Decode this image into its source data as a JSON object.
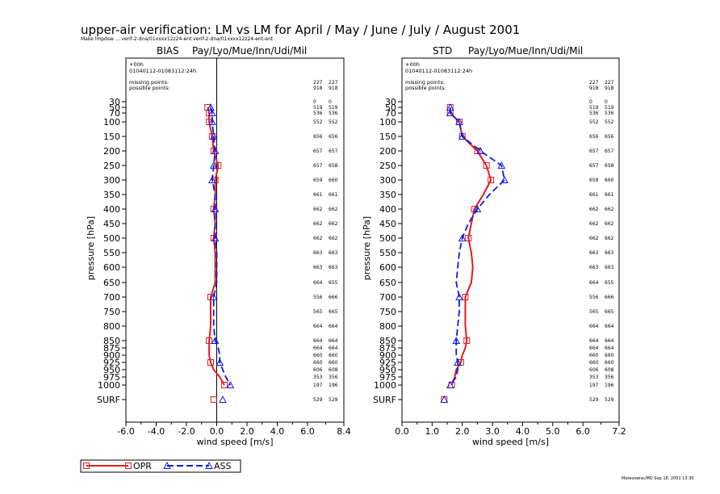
{
  "header": {
    "title": "upper-air verification: LM vs LM for April / May / June / July / August 2001",
    "subtitle": "Make lmpdsw ... verif-2-dna/01xxxx12z24-ent verif-2-dna/01xxxx12z24-ent-ent",
    "stamp": "Meteoswiss/MO Sep 18, 2001 13:30"
  },
  "legend": {
    "position": "bottom-left",
    "entries": [
      {
        "label": "OPR",
        "color": "#e41a1c",
        "style": "solid",
        "marker": "square"
      },
      {
        "label": "ASS",
        "color": "#0a1ae8",
        "style": "dashed",
        "marker": "triangle"
      }
    ]
  },
  "chart_data": [
    {
      "type": "line",
      "title": "BIAS",
      "stations": "Pay/Lyo/Mue/Inn/Udi/Mil",
      "xlabel": "wind speed  [m/s]",
      "ylabel": "pressure [hPa]",
      "xlim": [
        -6.0,
        8.4
      ],
      "xticks": [
        "-6.0",
        "-4.0",
        "-2.0",
        "0.0",
        "2.0",
        "4.0",
        "6.0",
        "8.4"
      ],
      "zero_line": true,
      "info": [
        "+00h",
        "01040112-01083112:24h",
        "missing points:",
        "possible points:"
      ],
      "count_header": [
        [
          "227",
          "227"
        ],
        [
          "918",
          "918"
        ]
      ],
      "levels": [
        "30",
        "50",
        "70",
        "100",
        "150",
        "200",
        "250",
        "300",
        "350",
        "400",
        "450",
        "500",
        "550",
        "600",
        "650",
        "700",
        "750",
        "800",
        "850",
        "875",
        "900",
        "925",
        "950",
        "975",
        "1000",
        "SURF"
      ],
      "counts": [
        [
          "0",
          "0"
        ],
        [
          "519",
          "519"
        ],
        [
          "536",
          "536"
        ],
        [
          "552",
          "552"
        ],
        [
          "656",
          "656"
        ],
        [
          "657",
          "657"
        ],
        [
          "657",
          "658"
        ],
        [
          "659",
          "660"
        ],
        [
          "661",
          "661"
        ],
        [
          "662",
          "662"
        ],
        [
          "662",
          "662"
        ],
        [
          "662",
          "662"
        ],
        [
          "663",
          "663"
        ],
        [
          "663",
          "663"
        ],
        [
          "664",
          "655"
        ],
        [
          "556",
          "666"
        ],
        [
          "565",
          "665"
        ],
        [
          "664",
          "664"
        ],
        [
          "664",
          "664"
        ],
        [
          "664",
          "664"
        ],
        [
          "660",
          "660"
        ],
        [
          "660",
          "660"
        ],
        [
          "606",
          "608"
        ],
        [
          "353",
          "356"
        ],
        [
          "197",
          "196"
        ],
        [
          "529",
          "529"
        ]
      ],
      "series": [
        {
          "name": "OPR",
          "levels": [
            "50",
            "70",
            "100",
            "150",
            "200",
            "250",
            "300",
            "350",
            "400",
            "450",
            "500",
            "550",
            "600",
            "650",
            "700",
            "750",
            "800",
            "850",
            "875",
            "900",
            "925",
            "950",
            "975",
            "1000",
            "SURF"
          ],
          "values": [
            -0.6,
            -0.5,
            -0.5,
            -0.3,
            -0.2,
            0.1,
            -0.1,
            -0.1,
            -0.2,
            -0.1,
            -0.2,
            -0.1,
            -0.1,
            -0.1,
            -0.4,
            -0.4,
            -0.4,
            -0.5,
            -0.5,
            -0.5,
            -0.4,
            -0.2,
            0.2,
            0.5,
            -0.2
          ]
        },
        {
          "name": "ASS",
          "levels": [
            "50",
            "70",
            "100",
            "150",
            "200",
            "250",
            "300",
            "350",
            "400",
            "450",
            "500",
            "550",
            "600",
            "650",
            "700",
            "750",
            "800",
            "850",
            "875",
            "900",
            "925",
            "950",
            "975",
            "1000",
            "SURF"
          ],
          "values": [
            -0.4,
            -0.3,
            -0.3,
            -0.2,
            -0.1,
            -0.2,
            -0.3,
            -0.1,
            -0.1,
            -0.1,
            -0.1,
            0.0,
            0.0,
            0.0,
            -0.2,
            -0.2,
            -0.2,
            -0.1,
            0.1,
            0.2,
            0.2,
            0.4,
            0.6,
            0.9,
            0.4
          ]
        }
      ]
    },
    {
      "type": "line",
      "title": "STD",
      "stations": "Pay/Lyo/Mue/Inn/Udi/Mil",
      "xlabel": "wind speed  [m/s]",
      "ylabel": "pressure [hPa]",
      "xlim": [
        0.0,
        7.2
      ],
      "xticks": [
        "0.0",
        "1.0",
        "2.0",
        "3.0",
        "4.0",
        "5.0",
        "6.0",
        "7.2"
      ],
      "zero_line": false,
      "info": [
        "+00h",
        "01040112-01083112:24h",
        "missing points:",
        "possible points:"
      ],
      "count_header": [
        [
          "227",
          "227"
        ],
        [
          "918",
          "918"
        ]
      ],
      "levels": [
        "30",
        "50",
        "70",
        "100",
        "150",
        "200",
        "250",
        "300",
        "350",
        "400",
        "450",
        "500",
        "550",
        "600",
        "650",
        "700",
        "750",
        "800",
        "850",
        "875",
        "900",
        "925",
        "950",
        "975",
        "1000",
        "SURF"
      ],
      "counts": [
        [
          "0",
          "0"
        ],
        [
          "519",
          "519"
        ],
        [
          "536",
          "536"
        ],
        [
          "552",
          "552"
        ],
        [
          "656",
          "656"
        ],
        [
          "657",
          "657"
        ],
        [
          "657",
          "658"
        ],
        [
          "659",
          "660"
        ],
        [
          "661",
          "661"
        ],
        [
          "662",
          "662"
        ],
        [
          "662",
          "662"
        ],
        [
          "662",
          "662"
        ],
        [
          "663",
          "663"
        ],
        [
          "663",
          "663"
        ],
        [
          "664",
          "655"
        ],
        [
          "556",
          "666"
        ],
        [
          "565",
          "665"
        ],
        [
          "664",
          "664"
        ],
        [
          "664",
          "664"
        ],
        [
          "664",
          "664"
        ],
        [
          "660",
          "660"
        ],
        [
          "660",
          "660"
        ],
        [
          "606",
          "608"
        ],
        [
          "353",
          "356"
        ],
        [
          "197",
          "196"
        ],
        [
          "529",
          "529"
        ]
      ],
      "series": [
        {
          "name": "OPR",
          "levels": [
            "50",
            "70",
            "100",
            "150",
            "200",
            "250",
            "300",
            "350",
            "400",
            "450",
            "500",
            "550",
            "600",
            "650",
            "700",
            "750",
            "800",
            "850",
            "875",
            "900",
            "925",
            "950",
            "975",
            "1000",
            "SURF"
          ],
          "values": [
            1.6,
            1.6,
            1.9,
            2.0,
            2.5,
            2.8,
            2.95,
            2.7,
            2.4,
            2.3,
            2.2,
            2.3,
            2.35,
            2.3,
            2.1,
            2.1,
            2.1,
            2.15,
            2.1,
            2.0,
            1.95,
            1.8,
            1.75,
            1.65,
            1.4
          ]
        },
        {
          "name": "ASS",
          "levels": [
            "50",
            "70",
            "100",
            "150",
            "200",
            "250",
            "300",
            "350",
            "400",
            "450",
            "500",
            "550",
            "600",
            "650",
            "700",
            "750",
            "800",
            "850",
            "875",
            "900",
            "925",
            "950",
            "975",
            "1000",
            "SURF"
          ],
          "values": [
            1.6,
            1.6,
            1.9,
            2.0,
            2.6,
            3.3,
            3.4,
            2.9,
            2.5,
            2.2,
            2.0,
            1.9,
            1.85,
            1.8,
            1.9,
            1.9,
            1.85,
            1.8,
            1.8,
            1.8,
            1.85,
            1.85,
            1.8,
            1.6,
            1.4
          ]
        }
      ]
    }
  ]
}
